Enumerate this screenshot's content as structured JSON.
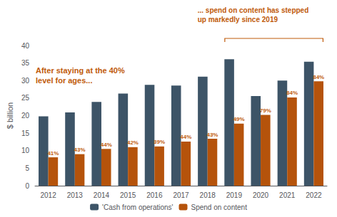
{
  "chart_data": {
    "type": "bar",
    "categories": [
      "2012",
      "2013",
      "2014",
      "2015",
      "2016",
      "2017",
      "2018",
      "2019",
      "2020",
      "2021",
      "2022"
    ],
    "series": [
      {
        "name": "'Cash from operations'",
        "color": "#3d5467",
        "values": [
          19.8,
          20.9,
          23.9,
          26.3,
          28.8,
          28.6,
          31.1,
          36.1,
          25.6,
          30.0,
          35.4
        ]
      },
      {
        "name": "Spend on content",
        "color": "#b5530b",
        "values": [
          8.1,
          9.0,
          10.5,
          11.0,
          11.2,
          12.6,
          13.4,
          17.7,
          20.2,
          25.2,
          29.8
        ],
        "percentages": [
          "41%",
          "43%",
          "44%",
          "42%",
          "39%",
          "44%",
          "43%",
          "49%",
          "79%",
          "84%",
          "84%"
        ]
      }
    ],
    "ylabel": "$ billion",
    "ylim": [
      0,
      40
    ],
    "yticks": [
      0,
      5,
      10,
      15,
      20,
      25,
      30,
      35,
      40
    ],
    "annotations": [
      "After staying at the 40%\nlevel for ages...",
      "... spend on content has stepped\nup markedly since 2019"
    ],
    "annotation_color": "#c05a0a",
    "legend": "bottom",
    "grid": false
  }
}
